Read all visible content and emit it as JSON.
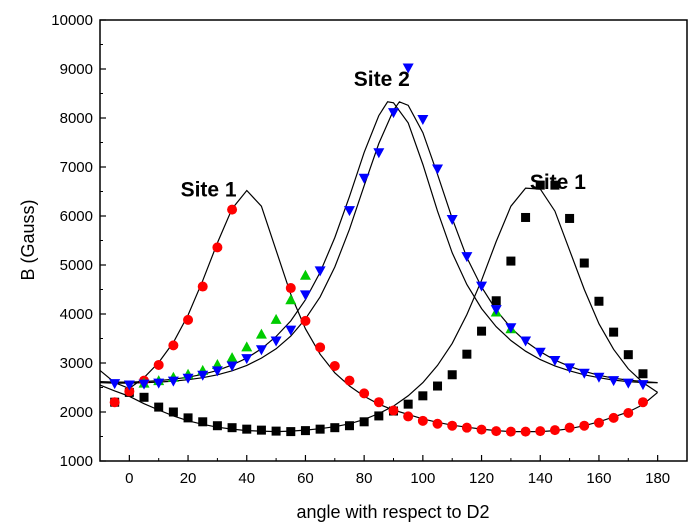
{
  "chart_data": {
    "type": "scatter",
    "title": "",
    "xlabel": "angle with respect to D2",
    "ylabel": "B (Gauss)",
    "xlim": [
      -10,
      190
    ],
    "ylim": [
      1000,
      10000
    ],
    "x_ticks": [
      0,
      20,
      40,
      60,
      80,
      100,
      120,
      140,
      160,
      180
    ],
    "y_ticks": [
      1000,
      2000,
      3000,
      4000,
      5000,
      6000,
      7000,
      8000,
      9000,
      10000
    ],
    "grid": false,
    "legend": "none",
    "annotations": [
      {
        "text": "Site 1",
        "x": 27,
        "y": 6400
      },
      {
        "text": "Site 2",
        "x": 86,
        "y": 8650
      },
      {
        "text": "Site 1",
        "x": 146,
        "y": 6550
      }
    ],
    "series": [
      {
        "marker": "square",
        "color": "#000000",
        "x": [
          -5,
          0,
          5,
          10,
          15,
          20,
          25,
          30,
          35,
          40,
          45,
          50,
          55,
          60,
          65,
          70,
          75,
          80,
          85,
          90,
          95,
          100,
          105,
          110,
          115,
          120,
          125,
          130,
          135,
          140,
          145,
          150,
          155,
          160,
          165,
          170,
          175
        ],
        "y": [
          2200,
          2400,
          2300,
          2100,
          2000,
          1880,
          1800,
          1720,
          1680,
          1650,
          1630,
          1610,
          1600,
          1620,
          1650,
          1680,
          1720,
          1800,
          1920,
          2020,
          2160,
          2330,
          2530,
          2760,
          3180,
          3650,
          4270,
          5080,
          5970,
          6630,
          6630,
          5950,
          5040,
          4260,
          3630,
          3170,
          2780
        ]
      },
      {
        "marker": "circle",
        "color": "#ff0000",
        "x": [
          -5,
          0,
          5,
          10,
          15,
          20,
          25,
          30,
          35,
          55,
          60,
          65,
          70,
          75,
          80,
          85,
          90,
          95,
          100,
          105,
          110,
          115,
          120,
          125,
          130,
          135,
          140,
          145,
          150,
          155,
          160,
          165,
          170,
          175
        ],
        "y": [
          2200,
          2420,
          2640,
          2960,
          3360,
          3880,
          4560,
          5360,
          6130,
          4530,
          3860,
          3320,
          2940,
          2640,
          2380,
          2200,
          2030,
          1910,
          1820,
          1760,
          1720,
          1680,
          1640,
          1610,
          1600,
          1600,
          1610,
          1630,
          1680,
          1720,
          1780,
          1880,
          1980,
          2200
        ]
      },
      {
        "marker": "triangle-up",
        "color": "#00cc00",
        "x": [
          5,
          10,
          15,
          20,
          25,
          30,
          35,
          40,
          45,
          50,
          55,
          60,
          125,
          130
        ],
        "y": [
          2580,
          2630,
          2700,
          2760,
          2840,
          2960,
          3100,
          3320,
          3580,
          3880,
          4280,
          4780,
          4030,
          3690
        ]
      },
      {
        "marker": "triangle-down",
        "color": "#0000ff",
        "x": [
          -5,
          0,
          5,
          10,
          15,
          20,
          25,
          30,
          35,
          40,
          45,
          50,
          55,
          60,
          65,
          75,
          80,
          85,
          90,
          95,
          100,
          105,
          110,
          115,
          120,
          125,
          130,
          135,
          140,
          145,
          150,
          155,
          160,
          165,
          170,
          175
        ],
        "y": [
          2590,
          2560,
          2580,
          2600,
          2640,
          2700,
          2760,
          2850,
          2950,
          3100,
          3280,
          3460,
          3680,
          4400,
          4890,
          6120,
          6780,
          7300,
          8120,
          9030,
          7980,
          6970,
          5940,
          5180,
          4580,
          4100,
          3730,
          3460,
          3230,
          3060,
          2910,
          2800,
          2720,
          2650,
          2600,
          2570
        ]
      }
    ],
    "fit_curves": [
      {
        "name": "",
        "color": "#000000",
        "x": [
          -10,
          -5,
          0,
          5,
          10,
          15,
          20,
          25,
          30,
          35,
          40,
          45,
          50,
          55,
          60,
          65,
          70,
          75,
          80,
          85,
          90,
          95,
          100,
          105,
          110,
          115,
          120,
          125,
          130,
          135,
          140,
          145,
          150,
          155,
          160,
          165,
          170,
          175,
          180
        ],
        "y": [
          2850,
          2600,
          2480,
          2700,
          3010,
          3420,
          3980,
          4680,
          5450,
          6150,
          6520,
          6200,
          5300,
          4400,
          3700,
          3180,
          2800,
          2530,
          2320,
          2160,
          2040,
          1950,
          1860,
          1790,
          1730,
          1690,
          1650,
          1620,
          1600,
          1600,
          1600,
          1620,
          1660,
          1720,
          1800,
          1900,
          2000,
          2150,
          2400
        ]
      },
      {
        "name": "",
        "color": "#000000",
        "x": [
          -10,
          -5,
          0,
          5,
          10,
          15,
          20,
          25,
          30,
          35,
          40,
          45,
          50,
          55,
          60,
          65,
          70,
          75,
          80,
          85,
          90,
          95,
          100,
          105,
          110,
          115,
          120,
          125,
          130,
          135,
          140,
          145,
          150,
          155,
          160,
          165,
          170,
          175,
          180
        ],
        "y": [
          2550,
          2430,
          2320,
          2170,
          2040,
          1920,
          1820,
          1750,
          1690,
          1650,
          1620,
          1610,
          1600,
          1610,
          1630,
          1660,
          1700,
          1760,
          1850,
          1970,
          2120,
          2330,
          2600,
          2950,
          3400,
          3990,
          4690,
          5480,
          6200,
          6570,
          6550,
          6100,
          5300,
          4500,
          3800,
          3280,
          2880,
          2600,
          2400
        ]
      },
      {
        "name": "",
        "color": "#000000",
        "x": [
          -10,
          -5,
          0,
          5,
          10,
          15,
          20,
          25,
          30,
          35,
          40,
          45,
          50,
          55,
          60,
          65,
          70,
          75,
          80,
          85,
          88,
          90,
          95,
          100,
          105,
          110,
          115,
          120,
          125,
          130,
          135,
          140,
          145,
          150,
          155,
          160,
          165,
          170,
          175,
          180
        ],
        "y": [
          2620,
          2610,
          2610,
          2620,
          2640,
          2670,
          2710,
          2770,
          2850,
          2960,
          3100,
          3290,
          3540,
          3860,
          4290,
          4850,
          5560,
          6400,
          7300,
          8050,
          8330,
          8310,
          7900,
          7050,
          6100,
          5250,
          4600,
          4110,
          3740,
          3460,
          3240,
          3070,
          2940,
          2840,
          2760,
          2700,
          2650,
          2620,
          2600,
          2600
        ]
      },
      {
        "name": "",
        "color": "#000000",
        "x": [
          -10,
          -5,
          0,
          5,
          10,
          15,
          20,
          25,
          30,
          35,
          40,
          45,
          50,
          55,
          60,
          65,
          70,
          75,
          80,
          85,
          90,
          92,
          95,
          100,
          105,
          110,
          115,
          120,
          125,
          130,
          135,
          140,
          145,
          150,
          155,
          160,
          165,
          170,
          175,
          180
        ],
        "y": [
          2600,
          2590,
          2590,
          2600,
          2610,
          2630,
          2660,
          2700,
          2760,
          2840,
          2950,
          3100,
          3290,
          3550,
          3900,
          4350,
          4960,
          5730,
          6620,
          7480,
          8160,
          8330,
          8260,
          7700,
          6850,
          5950,
          5150,
          4550,
          4080,
          3720,
          3440,
          3230,
          3060,
          2930,
          2830,
          2750,
          2690,
          2650,
          2620,
          2600
        ]
      }
    ]
  }
}
